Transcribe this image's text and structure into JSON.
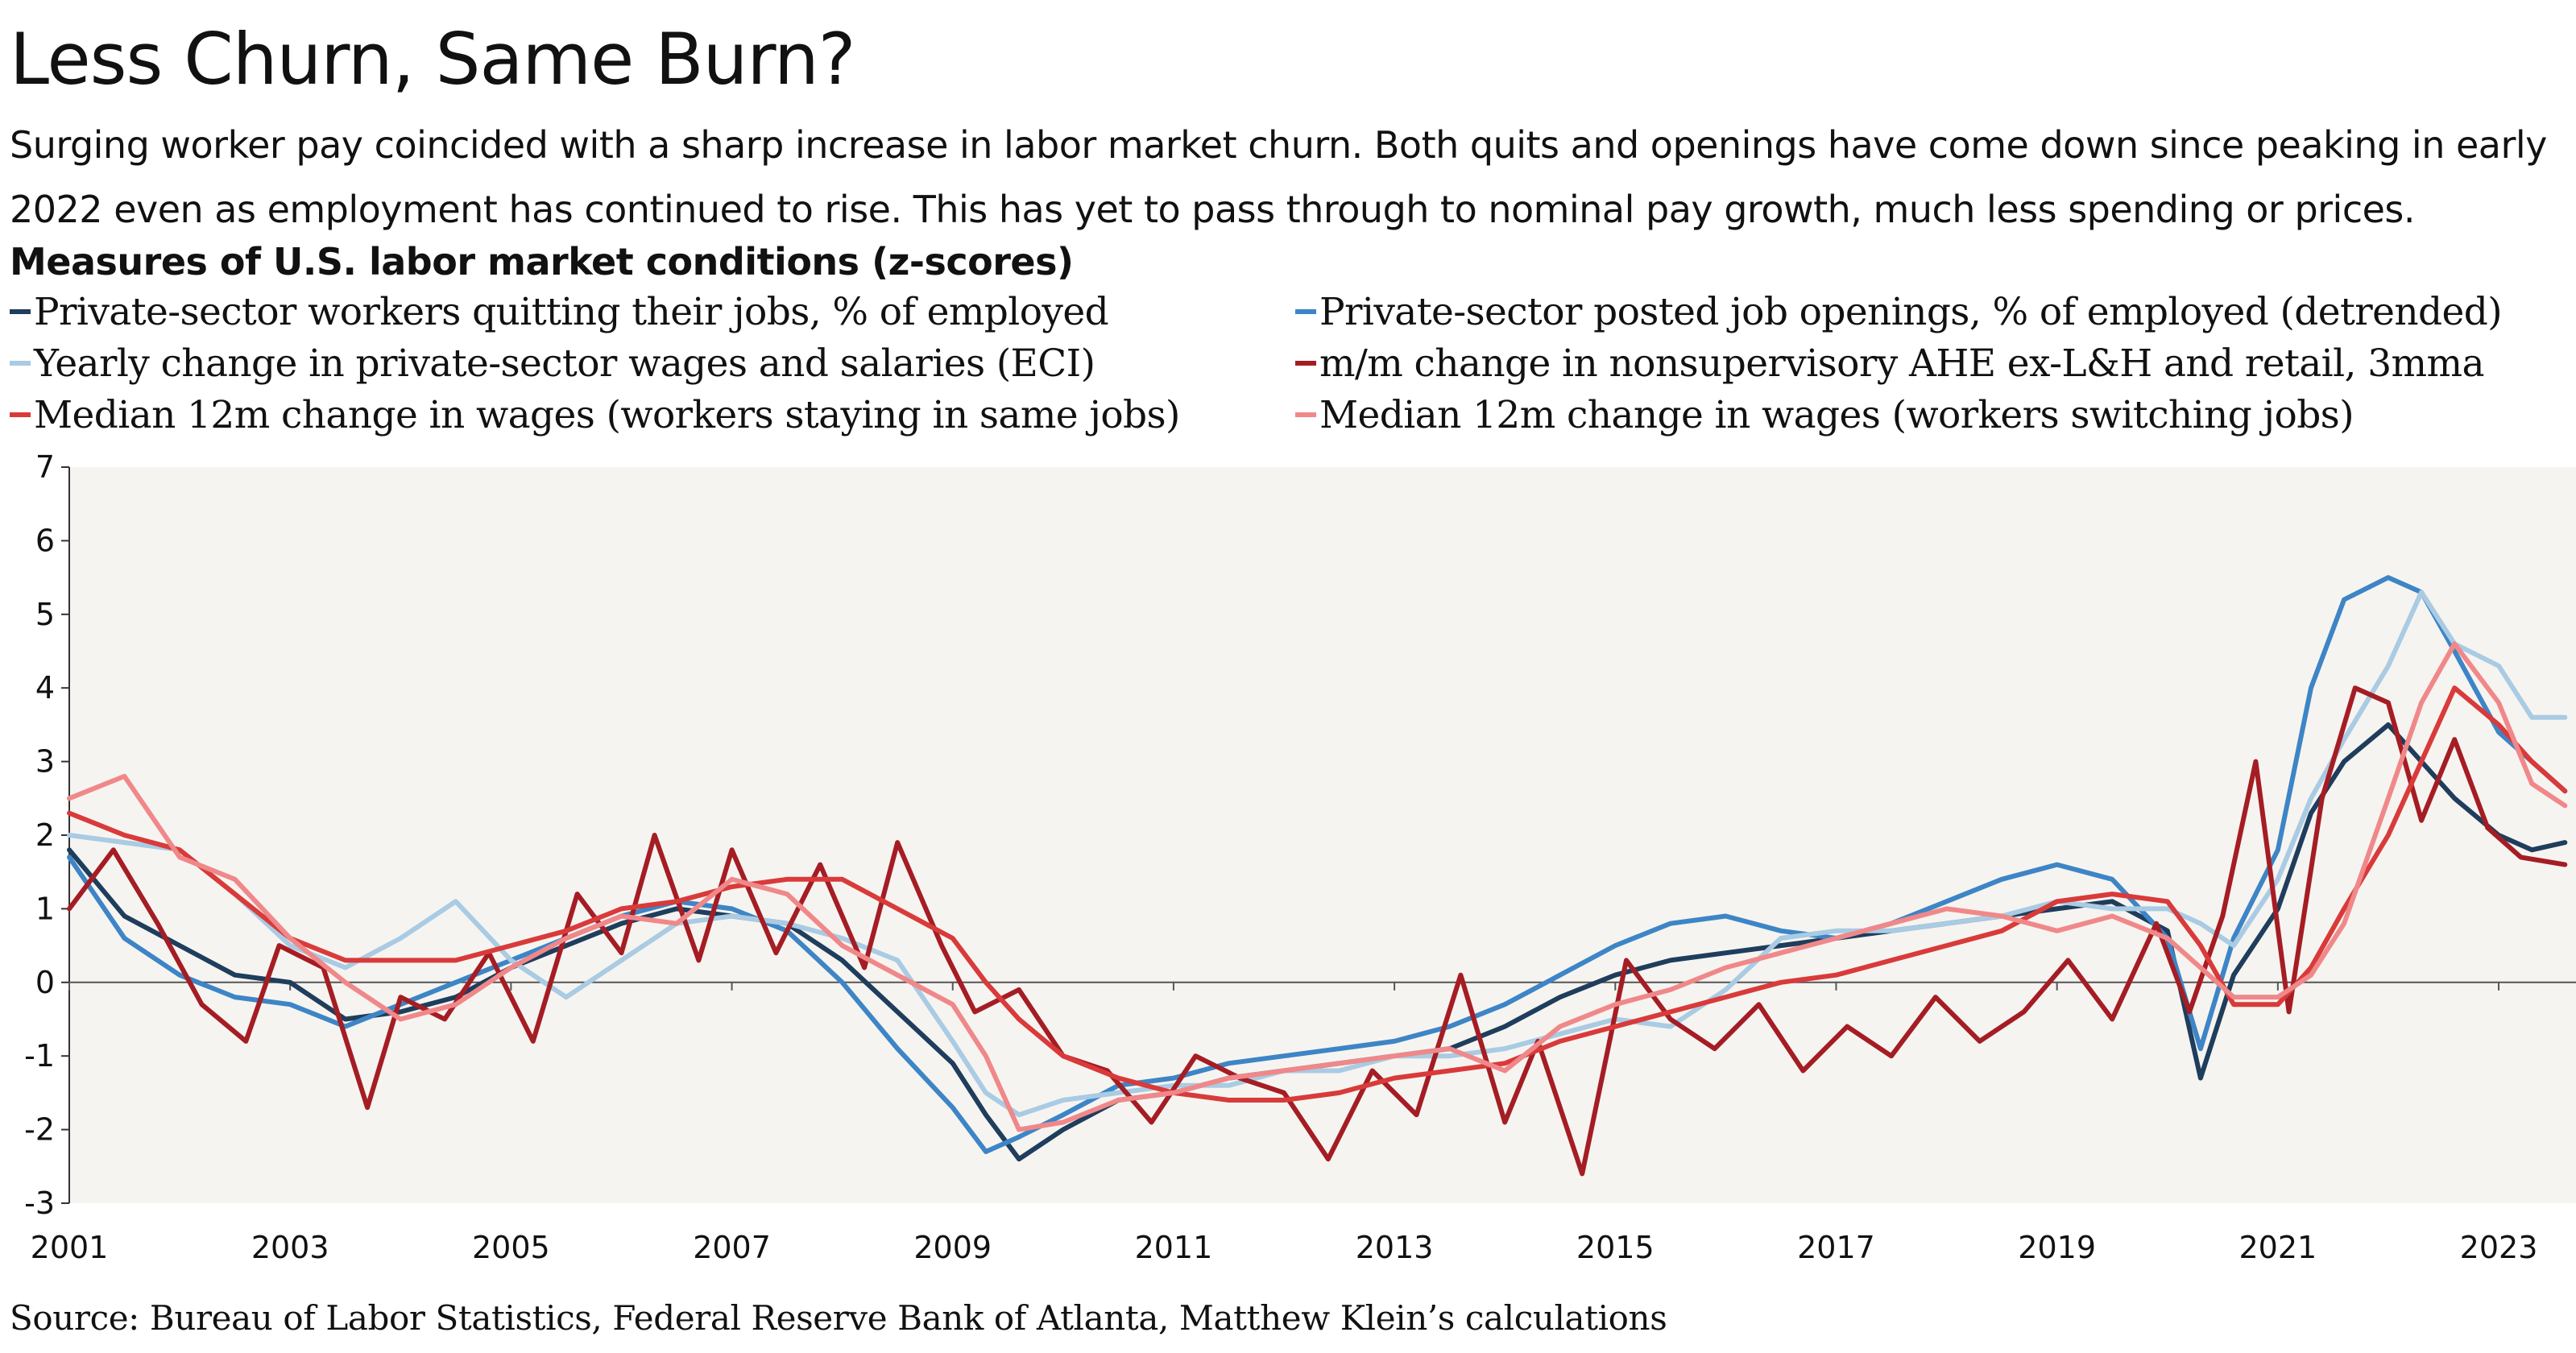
{
  "title": "Less Churn, Same Burn?",
  "subtitle": "Surging worker pay coincided with a sharp increase in labor market churn. Both quits and openings have come down since peaking in early 2022 even as employment has continued to rise. This has yet to pass through to nominal pay growth, much less spending or prices.",
  "source": "Source: Bureau of Labor Statistics, Federal Reserve Bank of Atlanta, Matthew Klein’s calculations",
  "chart_data": {
    "type": "line",
    "title": "Measures of U.S. labor market conditions (z-scores)",
    "xlabel": "",
    "ylabel": "",
    "xlim": [
      2001,
      2023.7
    ],
    "ylim": [
      -3,
      7
    ],
    "y_ticks": [
      "7",
      "6",
      "5",
      "4",
      "3",
      "2",
      "1",
      "0",
      "-1",
      "-2",
      "-3"
    ],
    "x_ticks": [
      "2001",
      "2003",
      "2005",
      "2007",
      "2009",
      "2011",
      "2013",
      "2015",
      "2017",
      "2019",
      "2021",
      "2023"
    ],
    "grid": false,
    "zero_line": true,
    "legend_position": "top",
    "series": [
      {
        "name": "Private-sector workers quitting their jobs, % of employed",
        "color": "#1f3d5c",
        "x": [
          2001.0,
          2001.5,
          2002.0,
          2002.5,
          2003.0,
          2003.5,
          2004.0,
          2004.5,
          2005.0,
          2005.5,
          2006.0,
          2006.5,
          2007.0,
          2007.5,
          2008.0,
          2008.5,
          2009.0,
          2009.3,
          2009.6,
          2010.0,
          2010.5,
          2011.0,
          2011.5,
          2012.0,
          2012.5,
          2013.0,
          2013.5,
          2014.0,
          2014.5,
          2015.0,
          2015.5,
          2016.0,
          2016.5,
          2017.0,
          2017.5,
          2018.0,
          2018.5,
          2019.0,
          2019.5,
          2020.0,
          2020.3,
          2020.6,
          2021.0,
          2021.3,
          2021.6,
          2022.0,
          2022.3,
          2022.6,
          2023.0,
          2023.3,
          2023.6
        ],
        "y": [
          1.8,
          0.9,
          0.5,
          0.1,
          0.0,
          -0.5,
          -0.4,
          -0.2,
          0.2,
          0.5,
          0.8,
          1.0,
          0.9,
          0.8,
          0.3,
          -0.4,
          -1.1,
          -1.8,
          -2.4,
          -2.0,
          -1.6,
          -1.5,
          -1.3,
          -1.2,
          -1.1,
          -1.0,
          -0.9,
          -0.6,
          -0.2,
          0.1,
          0.3,
          0.4,
          0.5,
          0.6,
          0.7,
          0.8,
          0.9,
          1.0,
          1.1,
          0.7,
          -1.3,
          0.1,
          1.0,
          2.3,
          3.0,
          3.5,
          3.0,
          2.5,
          2.0,
          1.8,
          1.9
        ]
      },
      {
        "name": "Private-sector posted job openings, % of employed (detrended)",
        "color": "#3d85c6",
        "x": [
          2001.0,
          2001.5,
          2002.0,
          2002.5,
          2003.0,
          2003.5,
          2004.0,
          2004.5,
          2005.0,
          2005.5,
          2006.0,
          2006.5,
          2007.0,
          2007.5,
          2008.0,
          2008.5,
          2009.0,
          2009.3,
          2009.6,
          2010.0,
          2010.5,
          2011.0,
          2011.5,
          2012.0,
          2012.5,
          2013.0,
          2013.5,
          2014.0,
          2014.5,
          2015.0,
          2015.5,
          2016.0,
          2016.5,
          2017.0,
          2017.5,
          2018.0,
          2018.5,
          2019.0,
          2019.5,
          2020.0,
          2020.3,
          2020.6,
          2021.0,
          2021.3,
          2021.6,
          2022.0,
          2022.3,
          2022.6,
          2023.0,
          2023.3,
          2023.6
        ],
        "y": [
          1.7,
          0.6,
          0.1,
          -0.2,
          -0.3,
          -0.6,
          -0.3,
          0.0,
          0.3,
          0.6,
          0.9,
          1.1,
          1.0,
          0.7,
          0.0,
          -0.9,
          -1.7,
          -2.3,
          -2.1,
          -1.8,
          -1.4,
          -1.3,
          -1.1,
          -1.0,
          -0.9,
          -0.8,
          -0.6,
          -0.3,
          0.1,
          0.5,
          0.8,
          0.9,
          0.7,
          0.6,
          0.8,
          1.1,
          1.4,
          1.6,
          1.4,
          0.6,
          -0.9,
          0.6,
          1.8,
          4.0,
          5.2,
          5.5,
          5.3,
          4.5,
          3.4,
          3.0,
          2.6
        ]
      },
      {
        "name": "Yearly change in private-sector wages and salaries (ECI)",
        "color": "#a9cbe3",
        "x": [
          2001.0,
          2001.5,
          2002.0,
          2002.5,
          2003.0,
          2003.5,
          2004.0,
          2004.5,
          2005.0,
          2005.5,
          2006.0,
          2006.5,
          2007.0,
          2007.5,
          2008.0,
          2008.5,
          2009.0,
          2009.3,
          2009.6,
          2010.0,
          2010.5,
          2011.0,
          2011.5,
          2012.0,
          2012.5,
          2013.0,
          2013.5,
          2014.0,
          2014.5,
          2015.0,
          2015.5,
          2016.0,
          2016.5,
          2017.0,
          2017.5,
          2018.0,
          2018.5,
          2019.0,
          2019.5,
          2020.0,
          2020.3,
          2020.6,
          2021.0,
          2021.3,
          2021.6,
          2022.0,
          2022.3,
          2022.6,
          2023.0,
          2023.3,
          2023.6
        ],
        "y": [
          2.0,
          1.9,
          1.8,
          1.2,
          0.5,
          0.2,
          0.6,
          1.1,
          0.3,
          -0.2,
          0.3,
          0.8,
          0.9,
          0.8,
          0.6,
          0.3,
          -0.8,
          -1.5,
          -1.8,
          -1.6,
          -1.5,
          -1.4,
          -1.4,
          -1.2,
          -1.2,
          -1.0,
          -1.0,
          -0.9,
          -0.7,
          -0.5,
          -0.6,
          -0.1,
          0.6,
          0.7,
          0.7,
          0.8,
          0.9,
          1.1,
          1.0,
          1.0,
          0.8,
          0.5,
          1.4,
          2.5,
          3.3,
          4.3,
          5.3,
          4.6,
          4.3,
          3.6,
          3.6
        ]
      },
      {
        "name": "m/m change in nonsupervisory AHE ex-L&H and retail, 3mma",
        "color": "#a51d24",
        "x": [
          2001.0,
          2001.4,
          2001.8,
          2002.2,
          2002.6,
          2002.9,
          2003.3,
          2003.7,
          2004.0,
          2004.4,
          2004.8,
          2005.2,
          2005.6,
          2006.0,
          2006.3,
          2006.7,
          2007.0,
          2007.4,
          2007.8,
          2008.2,
          2008.5,
          2008.9,
          2009.2,
          2009.6,
          2010.0,
          2010.4,
          2010.8,
          2011.2,
          2011.6,
          2012.0,
          2012.4,
          2012.8,
          2013.2,
          2013.6,
          2014.0,
          2014.3,
          2014.7,
          2015.1,
          2015.5,
          2015.9,
          2016.3,
          2016.7,
          2017.1,
          2017.5,
          2017.9,
          2018.3,
          2018.7,
          2019.1,
          2019.5,
          2019.9,
          2020.2,
          2020.5,
          2020.8,
          2021.1,
          2021.4,
          2021.7,
          2022.0,
          2022.3,
          2022.6,
          2022.9,
          2023.2,
          2023.6
        ],
        "y": [
          1.0,
          1.8,
          0.8,
          -0.3,
          -0.8,
          0.5,
          0.2,
          -1.7,
          -0.2,
          -0.5,
          0.4,
          -0.8,
          1.2,
          0.4,
          2.0,
          0.3,
          1.8,
          0.4,
          1.6,
          0.2,
          1.9,
          0.5,
          -0.4,
          -0.1,
          -1.0,
          -1.2,
          -1.9,
          -1.0,
          -1.3,
          -1.5,
          -2.4,
          -1.2,
          -1.8,
          0.1,
          -1.9,
          -0.8,
          -2.6,
          0.3,
          -0.5,
          -0.9,
          -0.3,
          -1.2,
          -0.6,
          -1.0,
          -0.2,
          -0.8,
          -0.4,
          0.3,
          -0.5,
          0.8,
          -0.4,
          0.9,
          3.0,
          -0.4,
          2.5,
          4.0,
          3.8,
          2.2,
          3.3,
          2.1,
          1.7,
          1.6
        ]
      },
      {
        "name": "Median 12m change in wages (workers staying in same jobs)",
        "color": "#d93a3a",
        "x": [
          2001.0,
          2001.5,
          2002.0,
          2002.5,
          2003.0,
          2003.5,
          2004.0,
          2004.5,
          2005.0,
          2005.5,
          2006.0,
          2006.5,
          2007.0,
          2007.5,
          2008.0,
          2008.5,
          2009.0,
          2009.3,
          2009.6,
          2010.0,
          2010.5,
          2011.0,
          2011.5,
          2012.0,
          2012.5,
          2013.0,
          2013.5,
          2014.0,
          2014.5,
          2015.0,
          2015.5,
          2016.0,
          2016.5,
          2017.0,
          2017.5,
          2018.0,
          2018.5,
          2019.0,
          2019.5,
          2020.0,
          2020.3,
          2020.6,
          2021.0,
          2021.3,
          2021.6,
          2022.0,
          2022.3,
          2022.6,
          2023.0,
          2023.3,
          2023.6
        ],
        "y": [
          2.3,
          2.0,
          1.8,
          1.2,
          0.6,
          0.3,
          0.3,
          0.3,
          0.5,
          0.7,
          1.0,
          1.1,
          1.3,
          1.4,
          1.4,
          1.0,
          0.6,
          0.0,
          -0.5,
          -1.0,
          -1.3,
          -1.5,
          -1.6,
          -1.6,
          -1.5,
          -1.3,
          -1.2,
          -1.1,
          -0.8,
          -0.6,
          -0.4,
          -0.2,
          0.0,
          0.1,
          0.3,
          0.5,
          0.7,
          1.1,
          1.2,
          1.1,
          0.5,
          -0.3,
          -0.3,
          0.2,
          1.0,
          2.0,
          3.0,
          4.0,
          3.5,
          3.0,
          2.6
        ]
      },
      {
        "name": "Median 12m change in wages (workers switching jobs)",
        "color": "#f0888a",
        "x": [
          2001.0,
          2001.5,
          2002.0,
          2002.5,
          2003.0,
          2003.5,
          2004.0,
          2004.5,
          2005.0,
          2005.5,
          2006.0,
          2006.5,
          2007.0,
          2007.5,
          2008.0,
          2008.5,
          2009.0,
          2009.3,
          2009.6,
          2010.0,
          2010.5,
          2011.0,
          2011.5,
          2012.0,
          2012.5,
          2013.0,
          2013.5,
          2014.0,
          2014.5,
          2015.0,
          2015.5,
          2016.0,
          2016.5,
          2017.0,
          2017.5,
          2018.0,
          2018.5,
          2019.0,
          2019.5,
          2020.0,
          2020.3,
          2020.6,
          2021.0,
          2021.3,
          2021.6,
          2022.0,
          2022.3,
          2022.6,
          2023.0,
          2023.3,
          2023.6
        ],
        "y": [
          2.5,
          2.8,
          1.7,
          1.4,
          0.6,
          0.0,
          -0.5,
          -0.3,
          0.2,
          0.6,
          0.9,
          0.8,
          1.4,
          1.2,
          0.5,
          0.1,
          -0.3,
          -1.0,
          -2.0,
          -1.9,
          -1.6,
          -1.5,
          -1.3,
          -1.2,
          -1.1,
          -1.0,
          -0.9,
          -1.2,
          -0.6,
          -0.3,
          -0.1,
          0.2,
          0.4,
          0.6,
          0.8,
          1.0,
          0.9,
          0.7,
          0.9,
          0.6,
          0.2,
          -0.2,
          -0.2,
          0.1,
          0.8,
          2.5,
          3.8,
          4.6,
          3.8,
          2.7,
          2.4
        ]
      }
    ]
  }
}
